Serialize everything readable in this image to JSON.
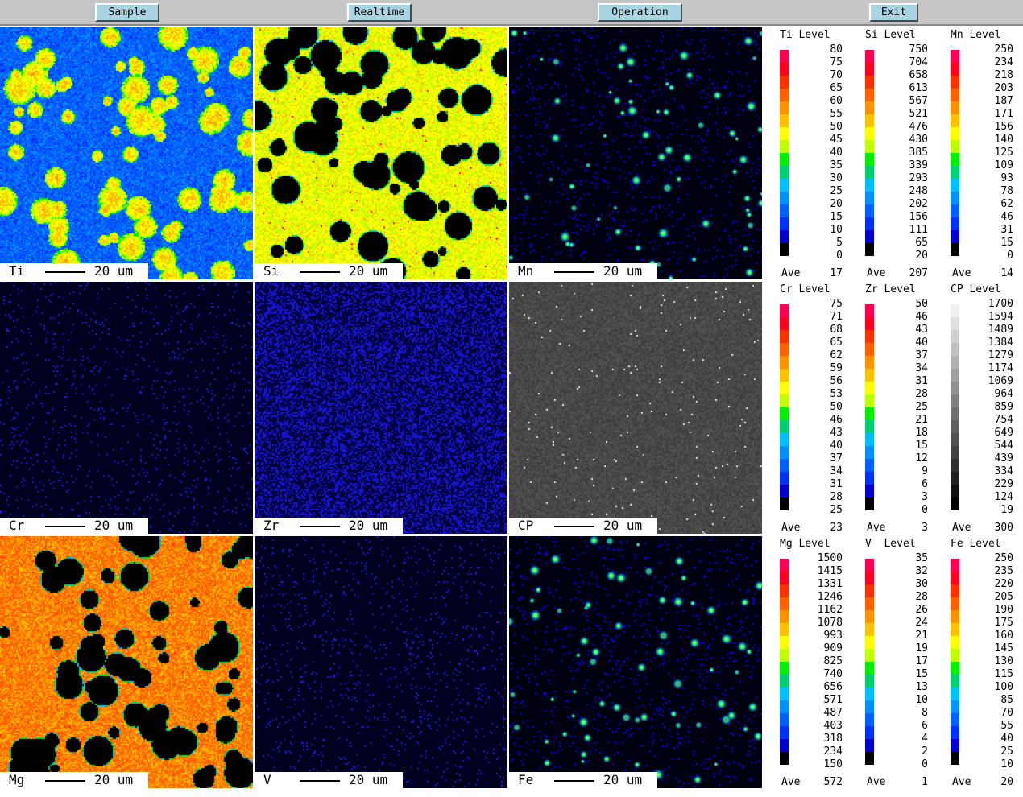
{
  "toolbar": {
    "sample_label": "Sample",
    "realtime_label": "Realtime",
    "operation_label": "Operation",
    "exit_label": "Exit"
  },
  "scale_bar_text": "20 um",
  "maps": [
    {
      "element": "Ti",
      "style": "ti"
    },
    {
      "element": "Si",
      "style": "si"
    },
    {
      "element": "Mn",
      "style": "spots"
    },
    {
      "element": "Cr",
      "style": "sparse"
    },
    {
      "element": "Zr",
      "style": "noise"
    },
    {
      "element": "CP",
      "style": "gray"
    },
    {
      "element": "Mg",
      "style": "mg"
    },
    {
      "element": "V",
      "style": "sparse"
    },
    {
      "element": "Fe",
      "style": "spots"
    }
  ],
  "legends": [
    {
      "title": "Ti Level",
      "palette": "color",
      "ave_label": "Ave",
      "ave": "17",
      "ticks": [
        "80",
        "75",
        "70",
        "65",
        "60",
        "55",
        "50",
        "45",
        "40",
        "35",
        "30",
        "25",
        "20",
        "15",
        "10",
        "5",
        "0"
      ]
    },
    {
      "title": "Si Level",
      "palette": "color",
      "ave_label": "Ave",
      "ave": "207",
      "ticks": [
        "750",
        "704",
        "658",
        "613",
        "567",
        "521",
        "476",
        "430",
        "385",
        "339",
        "293",
        "248",
        "202",
        "156",
        "111",
        "65",
        "20"
      ]
    },
    {
      "title": "Mn Level",
      "palette": "color",
      "ave_label": "Ave",
      "ave": "14",
      "ticks": [
        "250",
        "234",
        "218",
        "203",
        "187",
        "171",
        "156",
        "140",
        "125",
        "109",
        "93",
        "78",
        "62",
        "46",
        "31",
        "15",
        "0"
      ]
    },
    {
      "title": "Cr Level",
      "palette": "color",
      "ave_label": "Ave",
      "ave": "23",
      "ticks": [
        "75",
        "71",
        "68",
        "65",
        "62",
        "59",
        "56",
        "53",
        "50",
        "46",
        "43",
        "40",
        "37",
        "34",
        "31",
        "28",
        "25"
      ]
    },
    {
      "title": "Zr Level",
      "palette": "color",
      "ave_label": "Ave",
      "ave": "3",
      "ticks": [
        "50",
        "46",
        "43",
        "40",
        "37",
        "34",
        "31",
        "28",
        "25",
        "21",
        "18",
        "15",
        "12",
        "9",
        "6",
        "3",
        "0"
      ]
    },
    {
      "title": "CP Level",
      "palette": "gray",
      "ave_label": "Ave",
      "ave": "300",
      "ticks": [
        "1700",
        "1594",
        "1489",
        "1384",
        "1279",
        "1174",
        "1069",
        "964",
        "859",
        "754",
        "649",
        "544",
        "439",
        "334",
        "229",
        "124",
        "19"
      ]
    },
    {
      "title": "Mg Level",
      "palette": "color",
      "ave_label": "Ave",
      "ave": "572",
      "ticks": [
        "1500",
        "1415",
        "1331",
        "1246",
        "1162",
        "1078",
        "993",
        "909",
        "825",
        "740",
        "656",
        "571",
        "487",
        "403",
        "318",
        "234",
        "150"
      ]
    },
    {
      "title": "V  Level",
      "palette": "color",
      "ave_label": "Ave",
      "ave": "1",
      "ticks": [
        "35",
        "32",
        "30",
        "28",
        "26",
        "24",
        "21",
        "19",
        "17",
        "15",
        "13",
        "10",
        "8",
        "6",
        "4",
        "2",
        "0"
      ]
    },
    {
      "title": "Fe Level",
      "palette": "color",
      "ave_label": "Ave",
      "ave": "20",
      "ticks": [
        "250",
        "235",
        "220",
        "205",
        "190",
        "175",
        "160",
        "145",
        "130",
        "115",
        "100",
        "85",
        "70",
        "55",
        "40",
        "25",
        "10"
      ]
    }
  ],
  "colors": {
    "toolbar_bg": "#c6c6c6",
    "button_bg": "#a8d4e4",
    "color_scale": [
      "#ff0050",
      "#ff0020",
      "#ff3000",
      "#ff6000",
      "#ff9000",
      "#ffc000",
      "#ffff00",
      "#c0ff00",
      "#00f000",
      "#00d070",
      "#00c0ff",
      "#0090ff",
      "#0060ff",
      "#0030ff",
      "#0000d0",
      "#000000"
    ],
    "gray_scale": [
      "#f0f0f0",
      "#e0e0e0",
      "#d0d0d0",
      "#c0c0c0",
      "#b0b0b0",
      "#a0a0a0",
      "#909090",
      "#808080",
      "#707070",
      "#606060",
      "#505050",
      "#404040",
      "#303030",
      "#202020",
      "#101010",
      "#000000"
    ]
  }
}
